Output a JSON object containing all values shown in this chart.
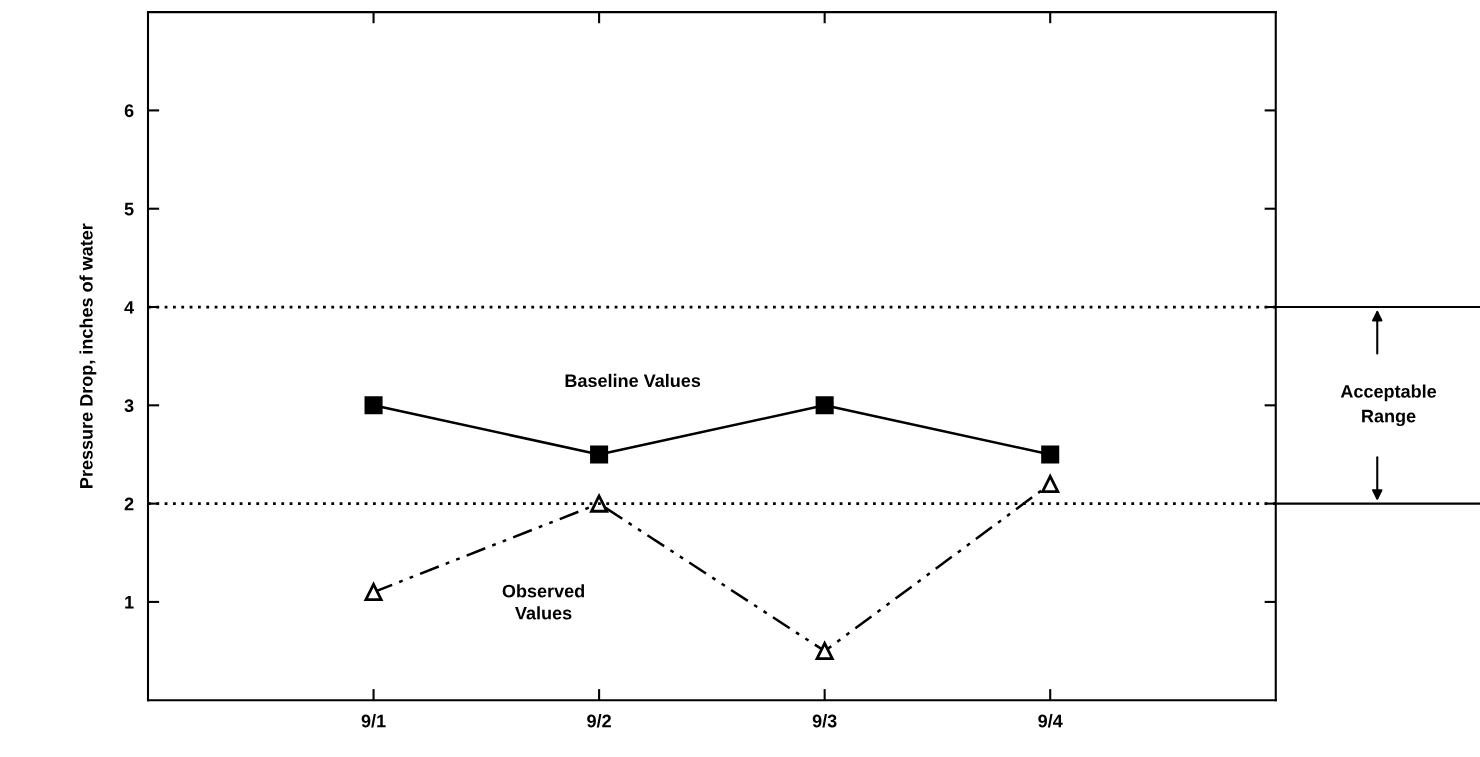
{
  "chart_data": {
    "type": "line",
    "ylabel": "Pressure Drop, inches of water",
    "categories": [
      "9/1",
      "9/2",
      "9/3",
      "9/4"
    ],
    "ylim": [
      0,
      7
    ],
    "yticks": [
      1,
      2,
      3,
      4,
      5,
      6
    ],
    "series": [
      {
        "name": "Baseline Values",
        "color": "#000000",
        "values": [
          3.0,
          2.5,
          3.0,
          2.5
        ],
        "marker": "square",
        "line_style": "solid"
      },
      {
        "name": "Observed Values",
        "color": "#000000",
        "values": [
          1.1,
          2.0,
          0.5,
          2.2
        ],
        "marker": "triangle",
        "line_style": "dashed"
      }
    ],
    "ref_lines": [
      {
        "axis": "y",
        "value": 4,
        "line_style": "dotted"
      },
      {
        "axis": "y",
        "value": 2,
        "line_style": "dotted"
      }
    ],
    "annotations": [
      "Acceptable Range"
    ],
    "grid": false,
    "legend": false
  }
}
